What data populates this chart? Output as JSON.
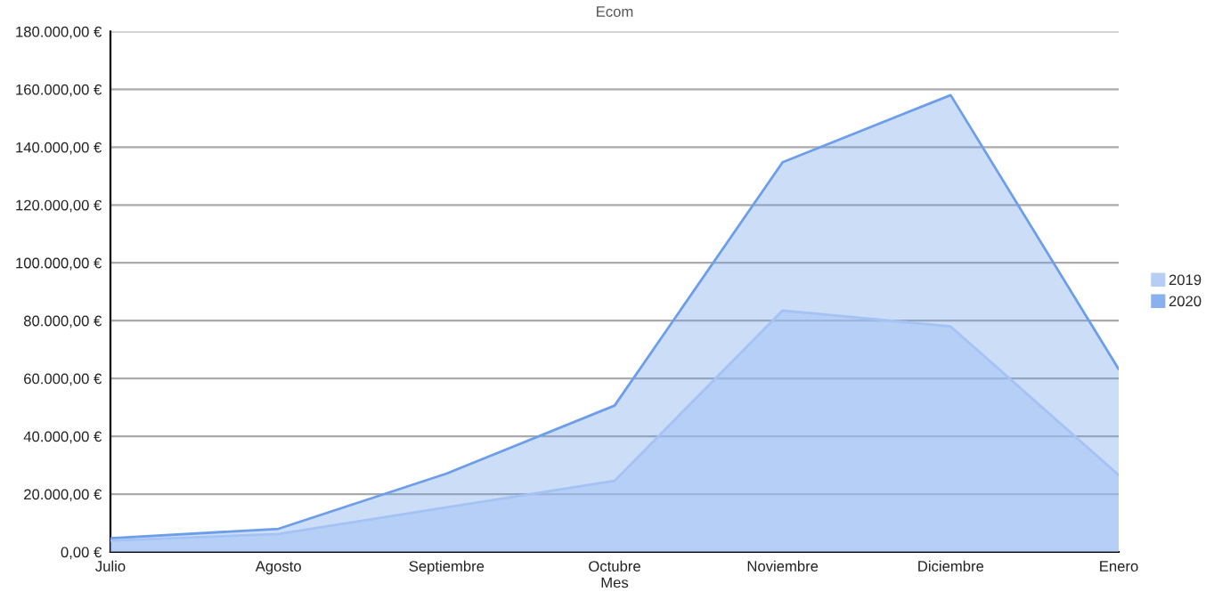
{
  "chart_data": {
    "type": "area",
    "title": "Ecom",
    "xlabel": "Mes",
    "categories": [
      "Julio",
      "Agosto",
      "Septiembre",
      "Octubre",
      "Noviembre",
      "Diciembre",
      "Enero"
    ],
    "series": [
      {
        "name": "2019",
        "color": "#a4c2f4",
        "values": [
          3900,
          6200,
          15400,
          24600,
          83500,
          78000,
          26600
        ]
      },
      {
        "name": "2020",
        "color": "#6d9eeb",
        "values": [
          4700,
          8000,
          27100,
          50600,
          134800,
          158000,
          63200
        ]
      }
    ],
    "ylim": [
      0,
      180000
    ],
    "yticks": [
      {
        "value": 0,
        "label": "0,00 €"
      },
      {
        "value": 20000,
        "label": "20.000,00 €"
      },
      {
        "value": 40000,
        "label": "40.000,00 €"
      },
      {
        "value": 60000,
        "label": "60.000,00 €"
      },
      {
        "value": 80000,
        "label": "80.000,00 €"
      },
      {
        "value": 100000,
        "label": "100.000,00 €"
      },
      {
        "value": 120000,
        "label": "120.000,00 €"
      },
      {
        "value": 140000,
        "label": "140.000,00 €"
      },
      {
        "value": 160000,
        "label": "160.000,00 €"
      },
      {
        "value": 180000,
        "label": "180.000,00 €"
      }
    ],
    "grid": "y",
    "legend": "right"
  }
}
